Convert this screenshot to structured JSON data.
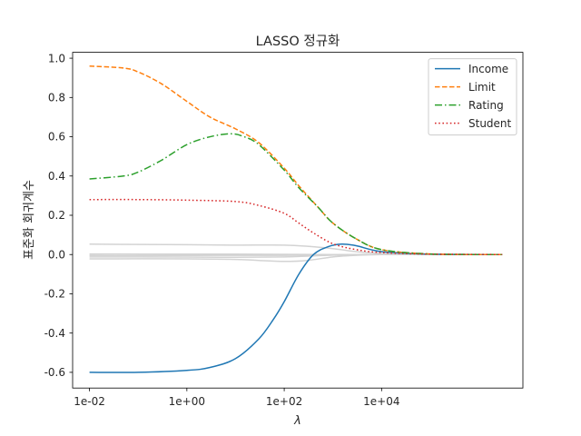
{
  "chart_data": {
    "type": "line",
    "title": "LASSO 정규화",
    "xlabel": "λ",
    "ylabel": "표준화 회귀계수",
    "xscale": "log",
    "xlim": [
      0.0045,
      8000000
    ],
    "ylim": [
      -0.68,
      1.03
    ],
    "grid": false,
    "legend_position": "top-right",
    "x_ticks": [
      {
        "value": 0.01,
        "label": "1e-02"
      },
      {
        "value": 1,
        "label": "1e+00"
      },
      {
        "value": 100,
        "label": "1e+02"
      },
      {
        "value": 10000,
        "label": "1e+04"
      }
    ],
    "y_ticks": [
      {
        "value": -0.6,
        "label": "-0.6"
      },
      {
        "value": -0.4,
        "label": "-0.4"
      },
      {
        "value": -0.2,
        "label": "-0.2"
      },
      {
        "value": 0.0,
        "label": "0.0"
      },
      {
        "value": 0.2,
        "label": "0.2"
      },
      {
        "value": 0.4,
        "label": "0.4"
      },
      {
        "value": 0.6,
        "label": "0.6"
      },
      {
        "value": 0.8,
        "label": "0.8"
      },
      {
        "value": 1.0,
        "label": "1.0"
      }
    ],
    "series": [
      {
        "name": "Income",
        "color": "#1f77b4",
        "dash": "solid",
        "x": [
          0.01,
          0.1,
          1,
          3,
          10,
          30,
          60,
          100,
          200,
          400,
          800,
          1500,
          3000,
          10000,
          100000,
          3000000
        ],
        "y": [
          -0.6,
          -0.6,
          -0.59,
          -0.575,
          -0.53,
          -0.43,
          -0.33,
          -0.24,
          -0.1,
          0.0,
          0.04,
          0.053,
          0.045,
          0.015,
          0.002,
          0.0
        ]
      },
      {
        "name": "Limit",
        "color": "#ff7f0e",
        "dash": "dashed",
        "x": [
          0.01,
          0.05,
          0.1,
          0.3,
          1,
          3,
          10,
          30,
          100,
          200,
          500,
          1000,
          3000,
          10000,
          100000,
          3000000
        ],
        "y": [
          0.96,
          0.95,
          0.93,
          0.87,
          0.78,
          0.7,
          0.64,
          0.57,
          0.44,
          0.35,
          0.24,
          0.16,
          0.08,
          0.025,
          0.003,
          0.0
        ]
      },
      {
        "name": "Rating",
        "color": "#2ca02c",
        "dash": "dashdot",
        "x": [
          0.01,
          0.05,
          0.1,
          0.3,
          1,
          3,
          8,
          15,
          30,
          100,
          200,
          500,
          1000,
          3000,
          10000,
          100000,
          3000000
        ],
        "y": [
          0.385,
          0.4,
          0.42,
          0.48,
          0.56,
          0.6,
          0.615,
          0.6,
          0.56,
          0.43,
          0.34,
          0.24,
          0.16,
          0.08,
          0.025,
          0.003,
          0.0
        ]
      },
      {
        "name": "Student",
        "color": "#d62728",
        "dash": "dotted",
        "x": [
          0.01,
          0.1,
          1,
          10,
          30,
          100,
          200,
          400,
          1000,
          3000,
          10000,
          100000,
          3000000
        ],
        "y": [
          0.28,
          0.28,
          0.277,
          0.27,
          0.25,
          0.21,
          0.16,
          0.11,
          0.055,
          0.025,
          0.01,
          0.002,
          0.0
        ]
      }
    ],
    "background_series": [
      {
        "color": "#d3d3d3",
        "x": [
          0.01,
          1,
          10,
          100,
          300,
          1000,
          3000,
          10000,
          100000,
          3000000
        ],
        "y": [
          0.053,
          0.05,
          0.048,
          0.048,
          0.042,
          0.03,
          0.015,
          0.005,
          0.0,
          0.0
        ]
      },
      {
        "color": "#d3d3d3",
        "x": [
          0.01,
          1,
          10,
          100,
          1000,
          10000,
          100000,
          3000000
        ],
        "y": [
          0.003,
          0.002,
          0.002,
          0.001,
          0.0,
          0.0,
          0.0,
          0.0
        ]
      },
      {
        "color": "#d3d3d3",
        "x": [
          0.01,
          1,
          10,
          100,
          1000,
          10000,
          100000,
          3000000
        ],
        "y": [
          -0.005,
          -0.005,
          -0.004,
          -0.004,
          -0.002,
          0.0,
          0.0,
          0.0
        ]
      },
      {
        "color": "#d3d3d3",
        "x": [
          0.01,
          1,
          10,
          100,
          300,
          1000,
          3000,
          10000,
          100000,
          3000000
        ],
        "y": [
          -0.012,
          -0.013,
          -0.014,
          -0.012,
          -0.008,
          -0.003,
          0.0,
          0.0,
          0.0,
          0.0
        ]
      },
      {
        "color": "#d3d3d3",
        "x": [
          0.01,
          1,
          10,
          30,
          100,
          300,
          1000,
          3000,
          10000,
          100000,
          3000000
        ],
        "y": [
          -0.022,
          -0.022,
          -0.025,
          -0.03,
          -0.035,
          -0.03,
          -0.012,
          -0.004,
          0.0,
          0.0,
          0.0
        ]
      }
    ]
  }
}
